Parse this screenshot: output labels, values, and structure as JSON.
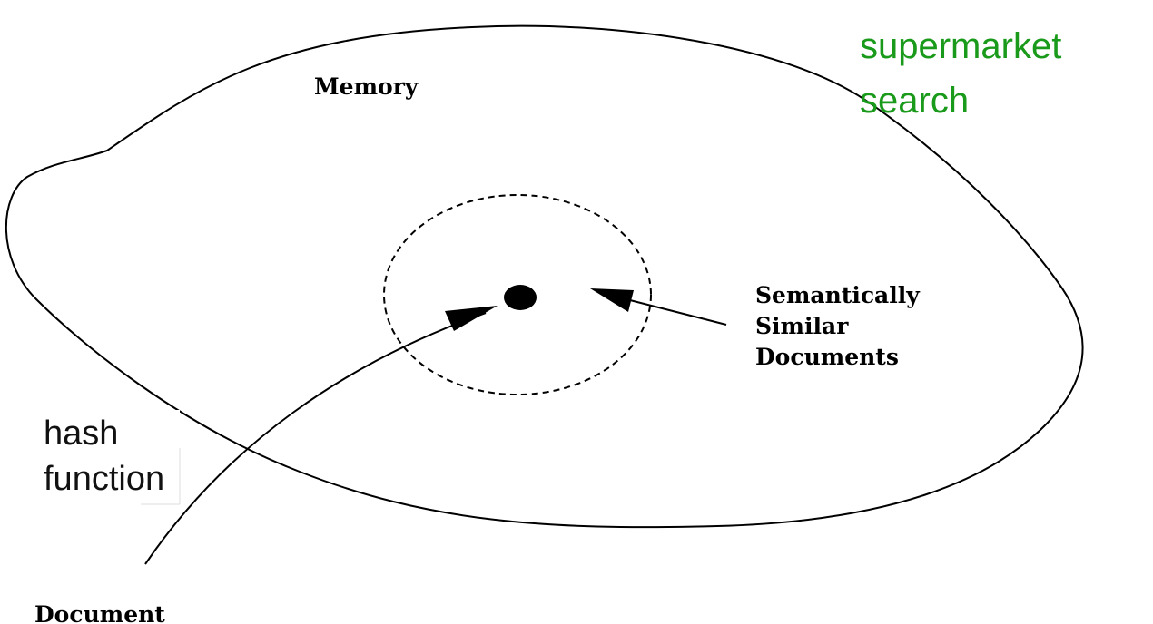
{
  "labels": {
    "memory": "Memory",
    "title_line1": "supermarket",
    "title_line2": "search",
    "semantic_line1": "Semantically",
    "semantic_line2": "Similar",
    "semantic_line3": "Documents",
    "hash_line1": "hash",
    "hash_line2": "function",
    "document": "Document"
  },
  "colors": {
    "title": "#1a9a1a",
    "ink": "#000000",
    "caption": "#111111"
  }
}
